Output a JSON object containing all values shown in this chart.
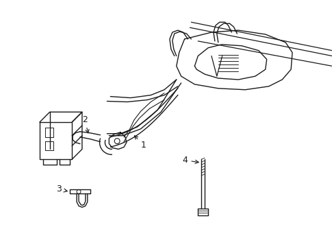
{
  "background_color": "#ffffff",
  "line_color": "#1a1a1a",
  "line_width": 1.0,
  "label_fontsize": 9,
  "figsize": [
    4.89,
    3.6
  ],
  "dpi": 100
}
